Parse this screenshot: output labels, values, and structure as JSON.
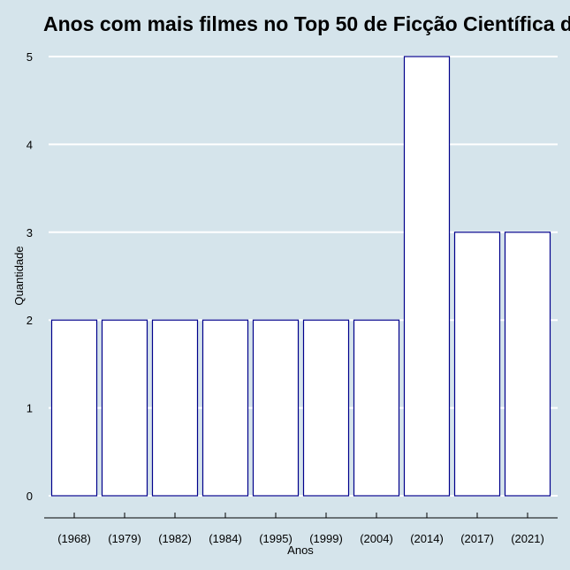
{
  "chart_data": {
    "type": "bar",
    "title": "Anos com mais filmes no Top 50 de Ficção Científica d",
    "xlabel": "Anos",
    "ylabel": "Quantidade",
    "categories": [
      "(1968)",
      "(1979)",
      "(1982)",
      "(1984)",
      "(1995)",
      "(1999)",
      "(2004)",
      "(2014)",
      "(2017)",
      "(2021)"
    ],
    "values": [
      2,
      2,
      2,
      2,
      2,
      2,
      2,
      5,
      3,
      3
    ],
    "ylim": [
      0,
      5
    ],
    "yticks": [
      0,
      1,
      2,
      3,
      4,
      5
    ],
    "grid": "horizontal",
    "legend": "none",
    "colors": {
      "background": "#d5e4eb",
      "bar_fill": "#ffffff",
      "bar_border": "#00008b",
      "grid": "#ffffff",
      "axis": "#000000"
    }
  }
}
